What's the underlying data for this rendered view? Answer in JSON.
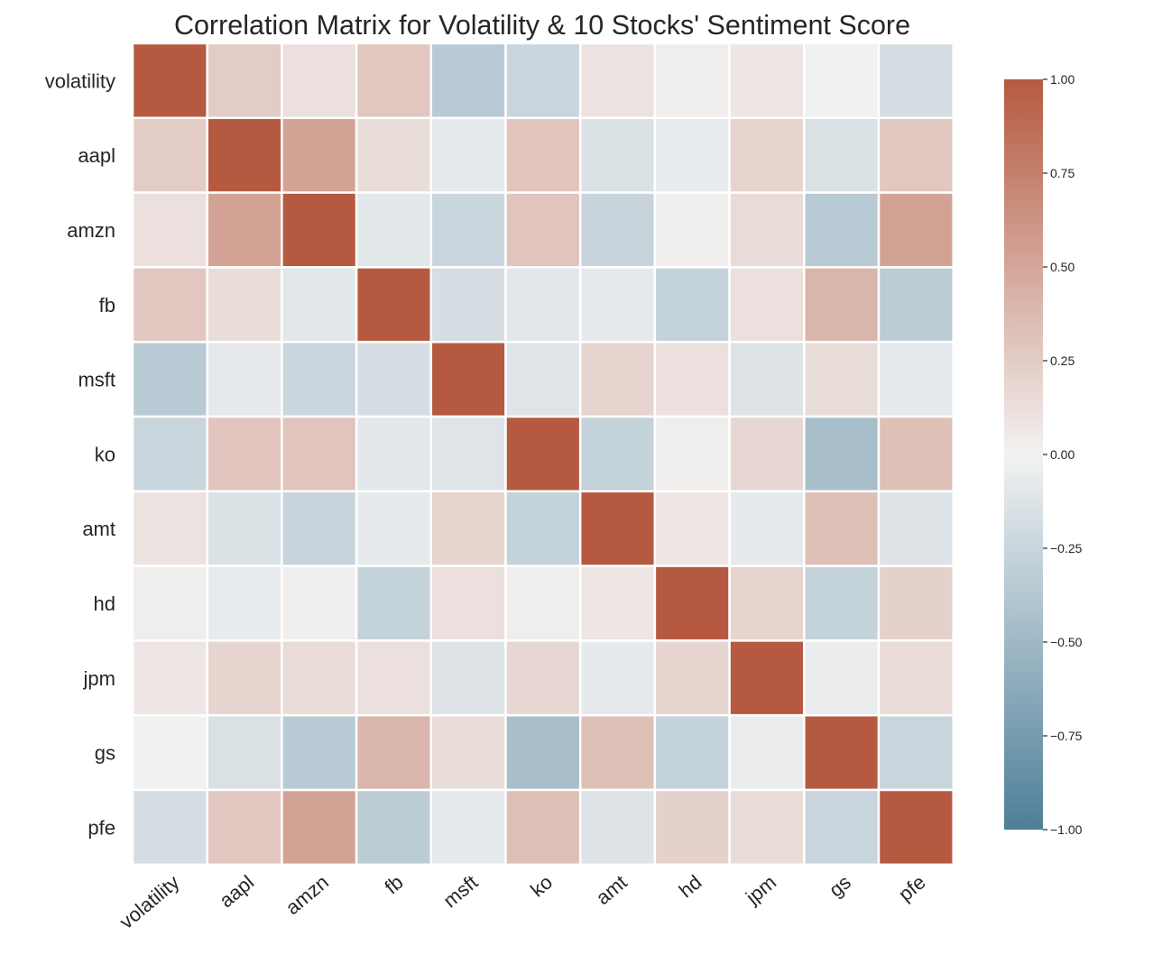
{
  "chart_data": {
    "type": "heatmap",
    "title": "Correlation Matrix for Volatility & 10 Stocks' Sentiment Score",
    "rows": [
      "volatility",
      "aapl",
      "amzn",
      "fb",
      "msft",
      "ko",
      "amt",
      "hd",
      "jpm",
      "gs",
      "pfe"
    ],
    "columns": [
      "volatility",
      "aapl",
      "amzn",
      "fb",
      "msft",
      "ko",
      "amt",
      "hd",
      "jpm",
      "gs",
      "pfe"
    ],
    "values": [
      [
        1.0,
        0.25,
        0.12,
        0.28,
        -0.35,
        -0.25,
        0.1,
        0.03,
        0.08,
        -0.01,
        -0.18
      ],
      [
        0.25,
        1.0,
        0.52,
        0.14,
        -0.08,
        0.3,
        -0.14,
        -0.06,
        0.2,
        -0.15,
        0.28
      ],
      [
        0.12,
        0.52,
        1.0,
        -0.1,
        -0.24,
        0.3,
        -0.26,
        0.02,
        0.15,
        -0.35,
        0.52
      ],
      [
        0.28,
        0.14,
        -0.1,
        1.0,
        -0.17,
        -0.1,
        -0.07,
        -0.28,
        0.12,
        0.4,
        -0.33
      ],
      [
        -0.35,
        -0.08,
        -0.24,
        -0.17,
        1.0,
        -0.12,
        0.2,
        0.12,
        -0.13,
        0.14,
        -0.08
      ],
      [
        -0.25,
        0.3,
        0.3,
        -0.1,
        -0.12,
        1.0,
        -0.28,
        0.03,
        0.18,
        -0.45,
        0.33
      ],
      [
        0.1,
        -0.14,
        -0.26,
        -0.07,
        0.2,
        -0.28,
        1.0,
        0.08,
        -0.07,
        0.33,
        -0.13
      ],
      [
        0.03,
        -0.06,
        0.02,
        -0.28,
        0.12,
        0.03,
        0.08,
        1.0,
        0.2,
        -0.28,
        0.22
      ],
      [
        0.08,
        0.2,
        0.15,
        0.12,
        -0.13,
        0.18,
        -0.07,
        0.2,
        1.0,
        -0.05,
        0.15
      ],
      [
        -0.01,
        -0.15,
        -0.35,
        0.4,
        0.14,
        -0.45,
        0.33,
        -0.28,
        -0.05,
        1.0,
        -0.25
      ],
      [
        -0.18,
        0.28,
        0.52,
        -0.33,
        -0.08,
        0.33,
        -0.13,
        0.22,
        0.15,
        -0.25,
        1.0
      ]
    ],
    "vmin": -1.0,
    "vmax": 1.0,
    "colorbar": {
      "ticks": [
        "1.00",
        "0.75",
        "0.50",
        "0.25",
        "0.00",
        "−0.25",
        "−0.50",
        "−0.75",
        "−1.00"
      ]
    },
    "colors": {
      "negative": "#4d7f99",
      "neutral": "#f2f2f2",
      "positive": "#b55a40",
      "gridline": "#ffffff"
    }
  }
}
